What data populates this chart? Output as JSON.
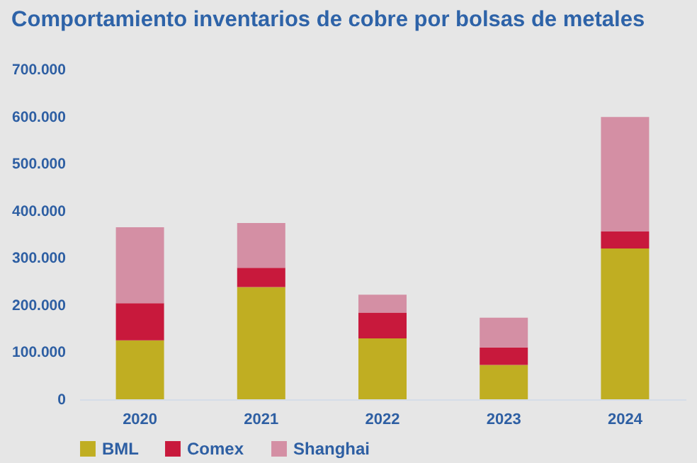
{
  "chart_data": {
    "type": "bar",
    "title": "Comportamiento inventarios de cobre por bolsas de metales",
    "categories": [
      "2020",
      "2021",
      "2022",
      "2023",
      "2024"
    ],
    "stacked": true,
    "series": [
      {
        "name": "BML",
        "color": "#c0ae22",
        "values": [
          125000,
          238000,
          129000,
          73000,
          320000
        ]
      },
      {
        "name": "Comex",
        "color": "#c8193c",
        "values": [
          79000,
          41000,
          55000,
          37000,
          36000
        ]
      },
      {
        "name": "Shanghai",
        "color": "#d48fa4",
        "values": [
          161000,
          95000,
          38000,
          63000,
          243000
        ]
      }
    ],
    "ylim": [
      0,
      700000
    ],
    "yticks": [
      {
        "value": 0,
        "label": "0"
      },
      {
        "value": 100000,
        "label": "100.000"
      },
      {
        "value": 200000,
        "label": "200.000"
      },
      {
        "value": 300000,
        "label": "300.000"
      },
      {
        "value": 400000,
        "label": "400.000"
      },
      {
        "value": 500000,
        "label": "500.000"
      },
      {
        "value": 600000,
        "label": "600.000"
      },
      {
        "value": 700000,
        "label": "700.000"
      }
    ],
    "grid": false,
    "legend": "bottom"
  }
}
